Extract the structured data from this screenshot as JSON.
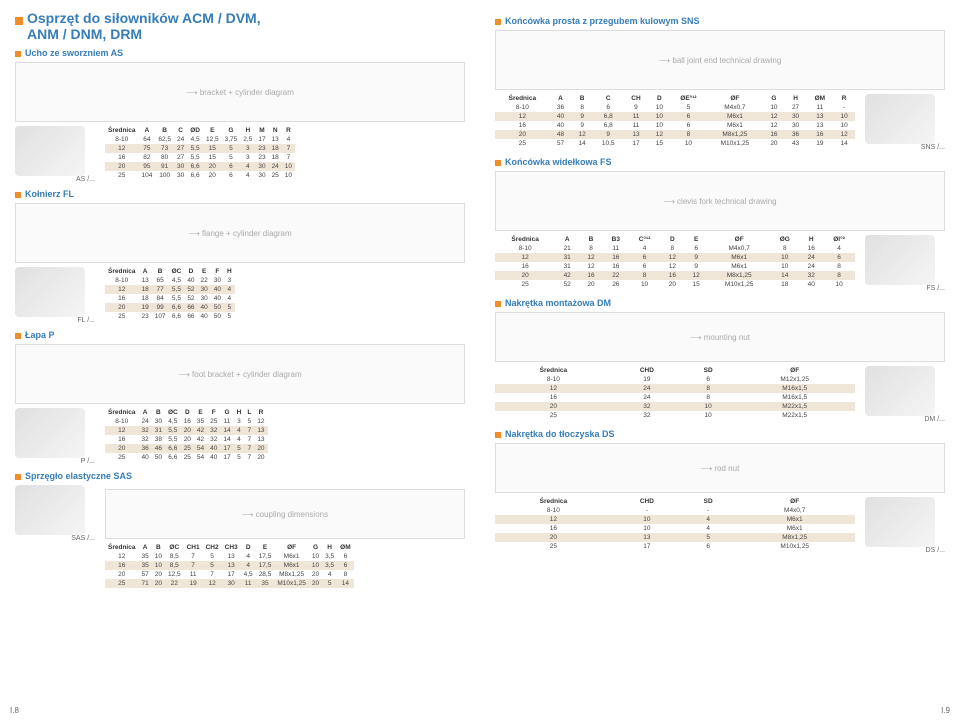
{
  "title_l1": "Osprzęt do siłowników ACM / DVM,",
  "title_l2": "ANM / DNM, DRM",
  "sections": {
    "as": {
      "title": "Ucho ze sworzniem AS",
      "code": "AS /...",
      "headers": [
        "Średnica",
        "A",
        "B",
        "C",
        "ØD",
        "E",
        "G",
        "H",
        "M",
        "N",
        "R"
      ],
      "rows": [
        [
          "8-10",
          "64",
          "62,5",
          "24",
          "4,5",
          "12,5",
          "3,75",
          "2,5",
          "17",
          "13",
          "4"
        ],
        [
          "12",
          "75",
          "73",
          "27",
          "5,5",
          "15",
          "5",
          "3",
          "23",
          "18",
          "7"
        ],
        [
          "16",
          "82",
          "80",
          "27",
          "5,5",
          "15",
          "5",
          "3",
          "23",
          "18",
          "7"
        ],
        [
          "20",
          "95",
          "91",
          "30",
          "6,6",
          "20",
          "6",
          "4",
          "30",
          "24",
          "10"
        ],
        [
          "25",
          "104",
          "100",
          "30",
          "6,6",
          "20",
          "6",
          "4",
          "30",
          "25",
          "10"
        ]
      ]
    },
    "fl_k": {
      "title": "Kołnierz FL"
    },
    "fl": {
      "code": "FL /...",
      "headers": [
        "Średnica",
        "A",
        "B",
        "ØC",
        "D",
        "E",
        "F",
        "H"
      ],
      "rows": [
        [
          "8-10",
          "13",
          "65",
          "4,5",
          "40",
          "22",
          "30",
          "3"
        ],
        [
          "12",
          "18",
          "77",
          "5,5",
          "52",
          "30",
          "40",
          "4"
        ],
        [
          "16",
          "18",
          "84",
          "5,5",
          "52",
          "30",
          "40",
          "4"
        ],
        [
          "20",
          "19",
          "99",
          "6,6",
          "66",
          "40",
          "50",
          "5"
        ],
        [
          "25",
          "23",
          "107",
          "6,6",
          "66",
          "40",
          "50",
          "5"
        ]
      ]
    },
    "p": {
      "title": "Łapa P",
      "code": "P /...",
      "headers": [
        "Średnica",
        "A",
        "B",
        "ØC",
        "D",
        "E",
        "F",
        "G",
        "H",
        "L",
        "R"
      ],
      "rows": [
        [
          "8-10",
          "24",
          "30",
          "4,5",
          "16",
          "35",
          "25",
          "11",
          "3",
          "5",
          "12"
        ],
        [
          "12",
          "32",
          "31",
          "5,5",
          "20",
          "42",
          "32",
          "14",
          "4",
          "7",
          "13"
        ],
        [
          "16",
          "32",
          "38",
          "5,5",
          "20",
          "42",
          "32",
          "14",
          "4",
          "7",
          "13"
        ],
        [
          "20",
          "36",
          "46",
          "6,6",
          "25",
          "54",
          "40",
          "17",
          "5",
          "7",
          "20"
        ],
        [
          "25",
          "40",
          "50",
          "6,6",
          "25",
          "54",
          "40",
          "17",
          "5",
          "7",
          "20"
        ]
      ]
    },
    "sas": {
      "title": "Sprzęgło elastyczne SAS",
      "code": "SAS /...",
      "headers": [
        "Średnica",
        "A",
        "B",
        "ØC",
        "CH1",
        "CH2",
        "CH3",
        "D",
        "E",
        "ØF",
        "G",
        "H",
        "ØM"
      ],
      "rows": [
        [
          "12",
          "35",
          "10",
          "8,5",
          "7",
          "5",
          "13",
          "4",
          "17,5",
          "M6x1",
          "10",
          "3,5",
          "6"
        ],
        [
          "16",
          "35",
          "10",
          "8,5",
          "7",
          "5",
          "13",
          "4",
          "17,5",
          "M6x1",
          "10",
          "3,5",
          "6"
        ],
        [
          "20",
          "57",
          "20",
          "12,5",
          "11",
          "7",
          "17",
          "4,5",
          "28,5",
          "M8x1,25",
          "20",
          "4",
          "8"
        ],
        [
          "25",
          "71",
          "20",
          "22",
          "19",
          "12",
          "30",
          "11",
          "35",
          "M10x1,25",
          "20",
          "5",
          "14"
        ]
      ]
    },
    "sns": {
      "title": "Końcówka prosta z przegubem kulowym SNS",
      "code": "SNS /...",
      "headers": [
        "Średnica",
        "A",
        "B",
        "C",
        "CH",
        "D",
        "ØE°¹²",
        "ØF",
        "G",
        "H",
        "ØM",
        "R"
      ],
      "rows": [
        [
          "8-10",
          "36",
          "8",
          "6",
          "9",
          "10",
          "5",
          "M4x0,7",
          "10",
          "27",
          "11",
          "-"
        ],
        [
          "12",
          "40",
          "9",
          "6,8",
          "11",
          "10",
          "6",
          "M6x1",
          "12",
          "30",
          "13",
          "10"
        ],
        [
          "16",
          "40",
          "9",
          "6,8",
          "11",
          "10",
          "6",
          "M6x1",
          "12",
          "30",
          "13",
          "10"
        ],
        [
          "20",
          "48",
          "12",
          "9",
          "13",
          "12",
          "8",
          "M8x1,25",
          "16",
          "36",
          "16",
          "12"
        ],
        [
          "25",
          "57",
          "14",
          "10,5",
          "17",
          "15",
          "10",
          "M10x1,25",
          "20",
          "43",
          "19",
          "14"
        ]
      ]
    },
    "fs": {
      "title": "Końcówka widełkowa FS",
      "code": "FS /...",
      "headers": [
        "Średnica",
        "A",
        "B",
        "B3",
        "C°¹²",
        "D",
        "E",
        "ØF",
        "ØG",
        "H",
        "ØI°²"
      ],
      "rows": [
        [
          "8-10",
          "21",
          "8",
          "11",
          "4",
          "8",
          "6",
          "M4x0,7",
          "8",
          "16",
          "4"
        ],
        [
          "12",
          "31",
          "12",
          "16",
          "6",
          "12",
          "9",
          "M6x1",
          "10",
          "24",
          "6"
        ],
        [
          "16",
          "31",
          "12",
          "16",
          "6",
          "12",
          "9",
          "M6x1",
          "10",
          "24",
          "8"
        ],
        [
          "20",
          "42",
          "16",
          "22",
          "8",
          "16",
          "12",
          "M8x1,25",
          "14",
          "32",
          "8"
        ],
        [
          "25",
          "52",
          "20",
          "26",
          "10",
          "20",
          "15",
          "M10x1,25",
          "18",
          "40",
          "10"
        ]
      ]
    },
    "dm": {
      "title": "Nakrętka montażowa DM",
      "code": "DM /...",
      "headers": [
        "Średnica",
        "CHD",
        "SD",
        "ØF"
      ],
      "rows": [
        [
          "8-10",
          "19",
          "6",
          "M12x1,25"
        ],
        [
          "12",
          "24",
          "8",
          "M16x1,5"
        ],
        [
          "16",
          "24",
          "8",
          "M16x1,5"
        ],
        [
          "20",
          "32",
          "10",
          "M22x1,5"
        ],
        [
          "25",
          "32",
          "10",
          "M22x1,5"
        ]
      ]
    },
    "ds": {
      "title": "Nakrętka do tłoczyska DS",
      "code": "DS /...",
      "headers": [
        "Średnica",
        "CHD",
        "SD",
        "ØF"
      ],
      "rows": [
        [
          "8-10",
          "-",
          "-",
          "M4x0,7"
        ],
        [
          "12",
          "10",
          "4",
          "M6x1"
        ],
        [
          "16",
          "10",
          "4",
          "M6x1"
        ],
        [
          "20",
          "13",
          "5",
          "M8x1,25"
        ],
        [
          "25",
          "17",
          "6",
          "M10x1,25"
        ]
      ]
    }
  },
  "footer_l": "I.8",
  "footer_r": "I.9"
}
